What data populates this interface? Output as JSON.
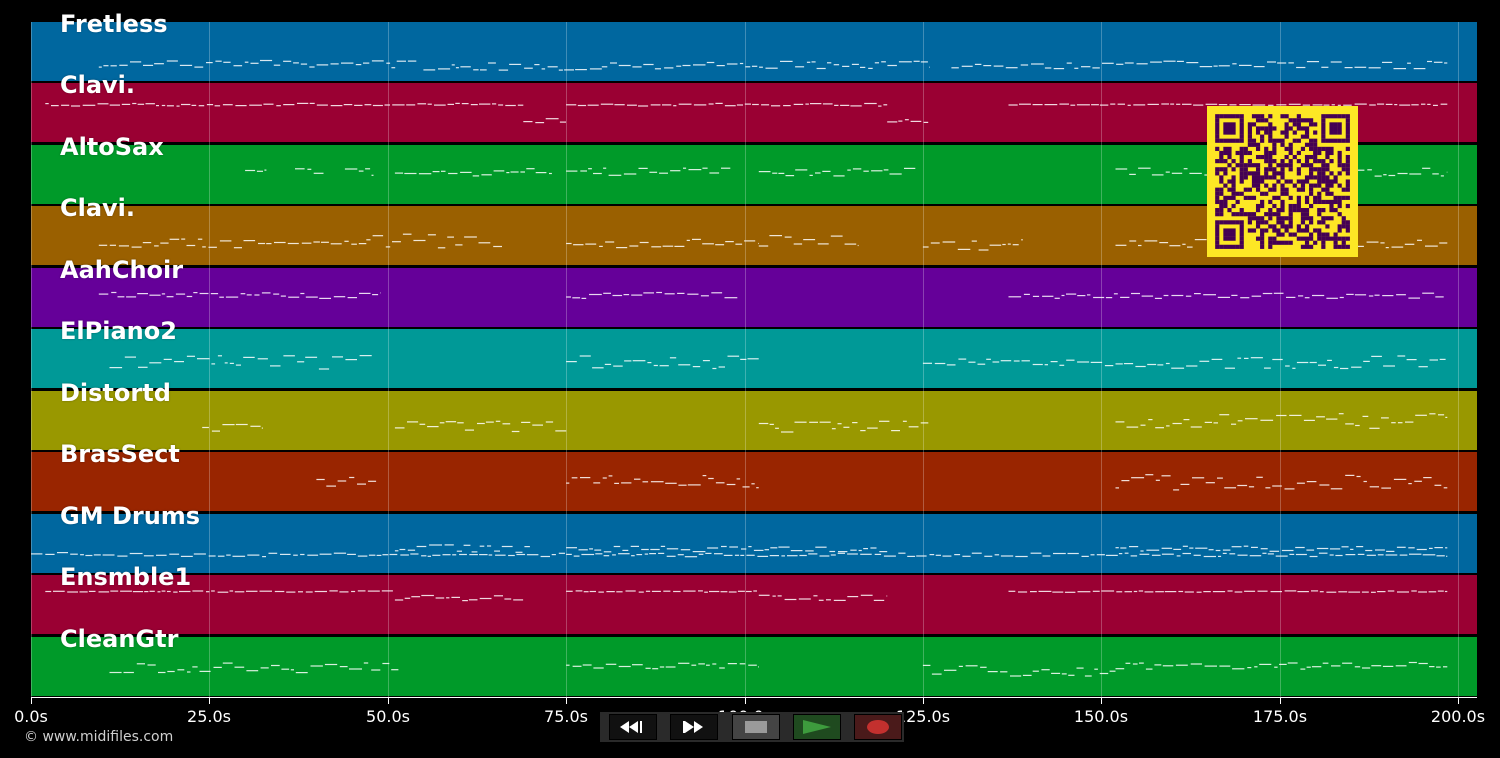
{
  "duration_seconds": 200,
  "axis": {
    "ticks": [
      0,
      25,
      50,
      75,
      100,
      125,
      150,
      175,
      200
    ],
    "tick_labels": [
      "0.0s",
      "25.0s",
      "50.0s",
      "75.0s",
      "100.0s",
      "125.0s",
      "150.0s",
      "175.0s",
      "200.0s"
    ]
  },
  "tracks": [
    {
      "name": "Fretless",
      "color": "#00679f",
      "segments": [
        [
          9.5,
          54,
          0.7,
          0.55
        ],
        [
          55,
          80,
          0.75,
          0.55
        ],
        [
          80,
          126,
          0.72,
          0.55
        ],
        [
          129,
          198.5,
          0.72,
          0.55
        ]
      ]
    },
    {
      "name": "Clavi.",
      "color": "#9a0033",
      "segments": [
        [
          2,
          69,
          0.35,
          0.2
        ],
        [
          69,
          75,
          0.62,
          0.3
        ],
        [
          75,
          120,
          0.35,
          0.2
        ],
        [
          120,
          126,
          0.62,
          0.3
        ],
        [
          137,
          198.5,
          0.35,
          0.1
        ]
      ]
    },
    {
      "name": "AltoSax",
      "color": "#009a29",
      "segments": [
        [
          30,
          33,
          0.45,
          0.5
        ],
        [
          37,
          41,
          0.45,
          0.5
        ],
        [
          44,
          48,
          0.45,
          0.5
        ],
        [
          51,
          73,
          0.45,
          0.6
        ],
        [
          75,
          98,
          0.45,
          0.6
        ],
        [
          102,
          124,
          0.45,
          0.6
        ],
        [
          152,
          198.5,
          0.45,
          0.6
        ]
      ]
    },
    {
      "name": "Clavi.",
      "color": "#9a6000",
      "segments": [
        [
          9.5,
          24,
          0.62,
          0.7
        ],
        [
          24,
          47,
          0.62,
          0.6
        ],
        [
          47,
          66,
          0.58,
          1.0
        ],
        [
          75,
          102,
          0.62,
          0.6
        ],
        [
          102,
          116,
          0.58,
          1.0
        ],
        [
          125,
          139,
          0.65,
          0.8
        ],
        [
          152,
          198.5,
          0.62,
          0.6
        ]
      ]
    },
    {
      "name": "AahChoir",
      "color": "#650099",
      "segments": [
        [
          9.5,
          49,
          0.46,
          0.45
        ],
        [
          75,
          99,
          0.46,
          0.45
        ],
        [
          137,
          198,
          0.46,
          0.45
        ]
      ]
    },
    {
      "name": "ElPiano2",
      "color": "#009997",
      "segments": [
        [
          11,
          48,
          0.55,
          1.0
        ],
        [
          75,
          102,
          0.55,
          1.0
        ],
        [
          125,
          152,
          0.55,
          0.5
        ],
        [
          152,
          198.5,
          0.55,
          1.0
        ]
      ]
    },
    {
      "name": "Distortd",
      "color": "#999800",
      "segments": [
        [
          24,
          32.5,
          0.6,
          0.7
        ],
        [
          51,
          75,
          0.6,
          0.8
        ],
        [
          102,
          126,
          0.6,
          0.8
        ],
        [
          152,
          198.5,
          0.5,
          1.1
        ]
      ]
    },
    {
      "name": "BrasSect",
      "color": "#992500",
      "segments": [
        [
          40,
          48.5,
          0.5,
          1.0
        ],
        [
          75,
          102,
          0.5,
          1.0
        ],
        [
          152,
          198.5,
          0.5,
          1.1
        ]
      ]
    },
    {
      "name": "GM Drums",
      "color": "#00679f",
      "segments": [
        [
          0,
          5.5,
          0.66,
          0.2
        ],
        [
          5.5,
          198.5,
          0.69,
          0.25
        ],
        [
          51,
          70,
          0.59,
          0.6
        ],
        [
          75,
          120,
          0.59,
          0.4
        ],
        [
          152,
          198.5,
          0.59,
          0.4
        ]
      ]
    },
    {
      "name": "Ensmble1",
      "color": "#9a0033",
      "segments": [
        [
          2,
          51,
          0.27,
          0.1
        ],
        [
          51,
          69,
          0.38,
          0.4
        ],
        [
          75,
          102,
          0.27,
          0.1
        ],
        [
          102,
          120,
          0.38,
          0.4
        ],
        [
          137,
          198.5,
          0.27,
          0.1
        ]
      ]
    },
    {
      "name": "CleanGtr",
      "color": "#009a29",
      "segments": [
        [
          11,
          51.5,
          0.52,
          0.7
        ],
        [
          75,
          102,
          0.49,
          0.4
        ],
        [
          125,
          152,
          0.57,
          0.8
        ],
        [
          152,
          198.5,
          0.49,
          0.5
        ]
      ]
    }
  ],
  "copyright": "© www.midifiles.com",
  "transport": {
    "rewind_icon": "rewind-icon",
    "fast_forward_icon": "fast-forward-icon",
    "stop_icon": "stop-icon",
    "play_icon": "play-icon",
    "record_icon": "record-icon"
  },
  "colors": {
    "qr_background": "#fde725",
    "qr_modules": "#440154",
    "play": "#3d9b3d",
    "record": "#c3302e"
  }
}
